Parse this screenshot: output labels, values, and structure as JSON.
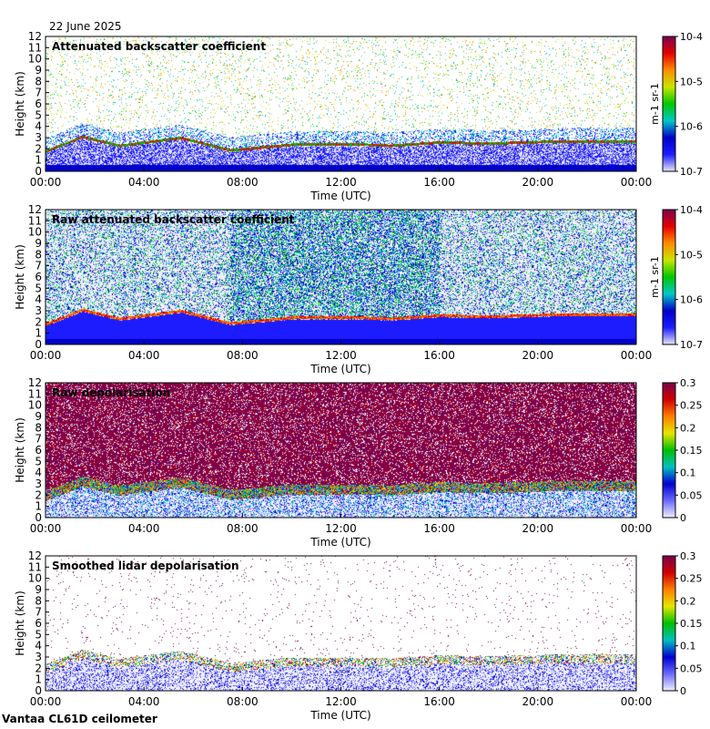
{
  "date_label": "22 June 2025",
  "footer": "Vantaa CL61D ceilometer",
  "colors": {
    "background": "#ffffff",
    "backscatter_scale": [
      "#e6e6f5",
      "#1c1cff",
      "#0000c8",
      "#00c8c8",
      "#00c800",
      "#c8e600",
      "#ff8c00",
      "#e60000",
      "#7a0050"
    ],
    "depol_scale": [
      "#f0f0ff",
      "#6a6aff",
      "#0000d0",
      "#00c0c0",
      "#00c000",
      "#e6e600",
      "#ff7f00",
      "#d00000",
      "#7a004e"
    ]
  },
  "chart_data": [
    {
      "type": "heatmap",
      "title": "Attenuated backscatter coefficient",
      "xlabel": "Time (UTC)",
      "ylabel": "Height (km)",
      "x_ticks": [
        "00:00",
        "04:00",
        "08:00",
        "12:00",
        "16:00",
        "20:00",
        "00:00"
      ],
      "xlim": [
        "00:00",
        "24:00"
      ],
      "ylim": [
        0,
        12
      ],
      "y_ticks": [
        "0",
        "1",
        "2",
        "3",
        "4",
        "5",
        "6",
        "7",
        "8",
        "9",
        "10",
        "11",
        "12"
      ],
      "colorbar": {
        "scale": "log",
        "min": 1e-07,
        "max": 0.0001,
        "tick_labels": [
          "10-7",
          "10-6",
          "10-5",
          "10-4"
        ],
        "unit": "m-1 sr-1",
        "palette": "backscatter_scale"
      },
      "cloud_layer": [
        [
          0,
          1.8
        ],
        [
          1.5,
          3.1
        ],
        [
          3,
          2.3
        ],
        [
          5.5,
          3.0
        ],
        [
          7.5,
          1.9
        ],
        [
          10,
          2.4
        ],
        [
          13,
          2.4
        ],
        [
          14,
          2.3
        ],
        [
          16,
          2.6
        ],
        [
          18,
          2.5
        ],
        [
          21,
          2.7
        ],
        [
          24,
          2.7
        ]
      ]
    },
    {
      "type": "heatmap",
      "title": "Raw attenuated backscatter coefficient",
      "xlabel": "Time (UTC)",
      "ylabel": "Height (km)",
      "x_ticks": [
        "00:00",
        "04:00",
        "08:00",
        "12:00",
        "16:00",
        "20:00",
        "00:00"
      ],
      "xlim": [
        "00:00",
        "24:00"
      ],
      "ylim": [
        0,
        12
      ],
      "y_ticks": [
        "0",
        "1",
        "2",
        "3",
        "4",
        "5",
        "6",
        "7",
        "8",
        "9",
        "10",
        "11",
        "12"
      ],
      "colorbar": {
        "scale": "log",
        "min": 1e-07,
        "max": 0.0001,
        "tick_labels": [
          "10-7",
          "10-6",
          "10-5",
          "10-4"
        ],
        "unit": "m-1 sr-1",
        "palette": "backscatter_scale"
      },
      "cloud_layer": [
        [
          0,
          1.8
        ],
        [
          1.5,
          3.1
        ],
        [
          3,
          2.3
        ],
        [
          5.5,
          3.0
        ],
        [
          7.5,
          1.9
        ],
        [
          10,
          2.4
        ],
        [
          13,
          2.4
        ],
        [
          14,
          2.3
        ],
        [
          16,
          2.6
        ],
        [
          18,
          2.5
        ],
        [
          21,
          2.7
        ],
        [
          24,
          2.7
        ]
      ]
    },
    {
      "type": "heatmap",
      "title": "Raw depolarisation",
      "xlabel": "Time (UTC)",
      "ylabel": "Height (km)",
      "x_ticks": [
        "00:00",
        "04:00",
        "08:00",
        "12:00",
        "16:00",
        "20:00",
        "00:00"
      ],
      "xlim": [
        "00:00",
        "24:00"
      ],
      "ylim": [
        0,
        12
      ],
      "y_ticks": [
        "0",
        "1",
        "2",
        "3",
        "4",
        "5",
        "6",
        "7",
        "8",
        "9",
        "10",
        "11",
        "12"
      ],
      "colorbar": {
        "scale": "linear",
        "min": 0,
        "max": 0.3,
        "tick_labels": [
          "0",
          "0.05",
          "0.1",
          "0.15",
          "0.2",
          "0.25",
          "0.3"
        ],
        "palette": "depol_scale"
      },
      "cloud_layer": [
        [
          0,
          1.8
        ],
        [
          1.5,
          3.1
        ],
        [
          3,
          2.3
        ],
        [
          5.5,
          3.0
        ],
        [
          7.5,
          1.9
        ],
        [
          10,
          2.4
        ],
        [
          13,
          2.4
        ],
        [
          14,
          2.3
        ],
        [
          16,
          2.6
        ],
        [
          18,
          2.5
        ],
        [
          21,
          2.7
        ],
        [
          24,
          2.7
        ]
      ]
    },
    {
      "type": "heatmap",
      "title": "Smoothed lidar depolarisation",
      "xlabel": "Time (UTC)",
      "ylabel": "Height (km)",
      "x_ticks": [
        "00:00",
        "04:00",
        "08:00",
        "12:00",
        "16:00",
        "20:00",
        "00:00"
      ],
      "xlim": [
        "00:00",
        "24:00"
      ],
      "ylim": [
        0,
        12
      ],
      "y_ticks": [
        "0",
        "1",
        "2",
        "3",
        "4",
        "5",
        "6",
        "7",
        "8",
        "9",
        "10",
        "11",
        "12"
      ],
      "colorbar": {
        "scale": "linear",
        "min": 0,
        "max": 0.3,
        "tick_labels": [
          "0",
          "0.05",
          "0.1",
          "0.15",
          "0.2",
          "0.25",
          "0.3"
        ],
        "palette": "depol_scale"
      },
      "cloud_layer": [
        [
          0,
          1.8
        ],
        [
          1.5,
          3.1
        ],
        [
          3,
          2.3
        ],
        [
          5.5,
          3.0
        ],
        [
          7.5,
          1.9
        ],
        [
          10,
          2.4
        ],
        [
          13,
          2.4
        ],
        [
          14,
          2.3
        ],
        [
          16,
          2.6
        ],
        [
          18,
          2.5
        ],
        [
          21,
          2.7
        ],
        [
          24,
          2.7
        ]
      ]
    }
  ]
}
